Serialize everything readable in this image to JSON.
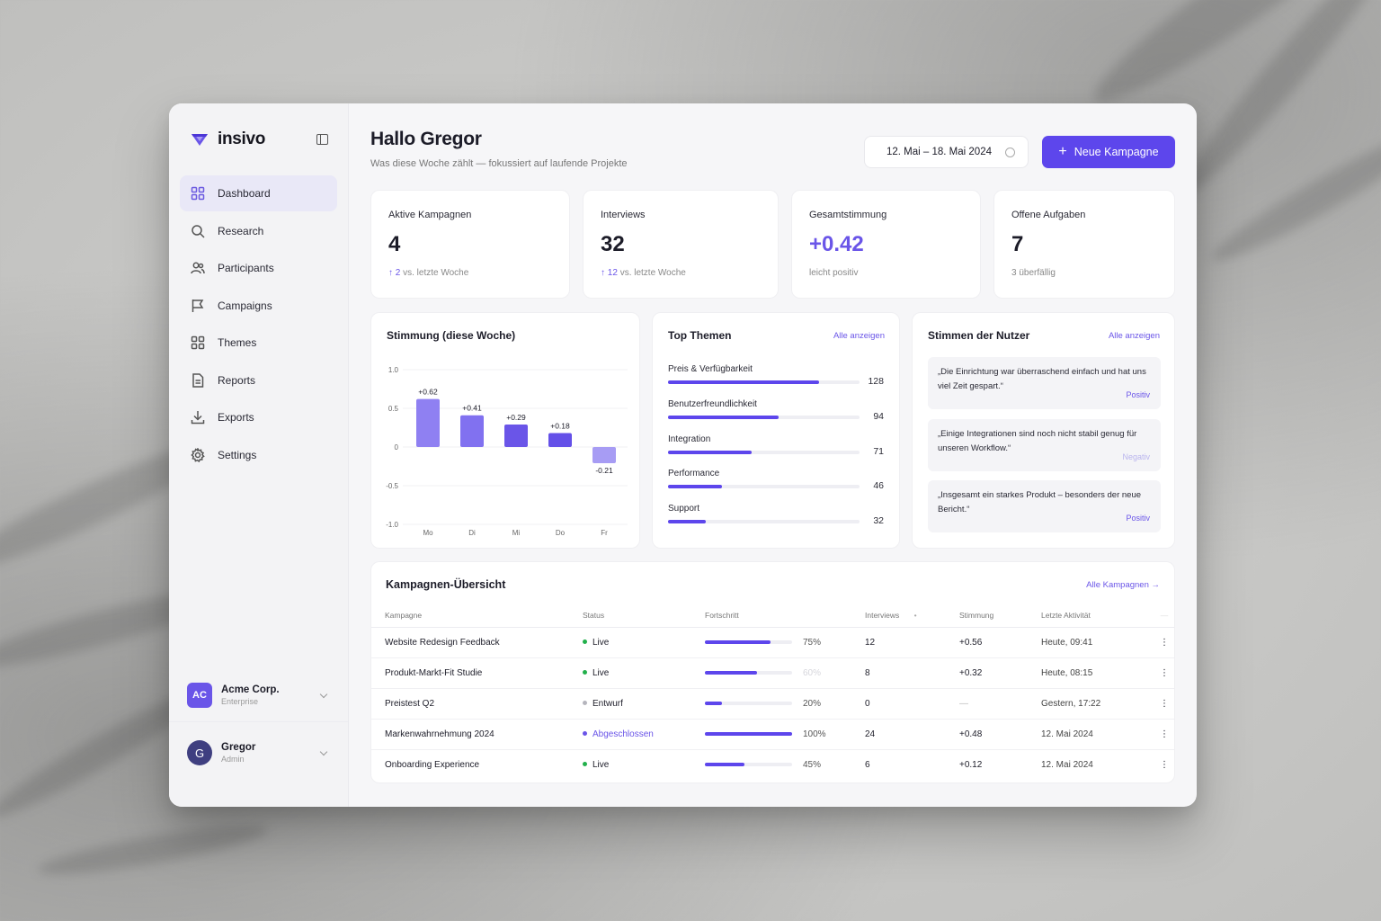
{
  "brand": {
    "name": "insivo"
  },
  "nav": [
    {
      "label": "Dashboard",
      "icon": "grid-icon",
      "active": true
    },
    {
      "label": "Research",
      "icon": "search-icon"
    },
    {
      "label": "Participants",
      "icon": "users-icon"
    },
    {
      "label": "Campaigns",
      "icon": "flag-icon"
    },
    {
      "label": "Themes",
      "icon": "themes-grid-icon"
    },
    {
      "label": "Reports",
      "icon": "document-icon"
    },
    {
      "label": "Exports",
      "icon": "download-icon"
    },
    {
      "label": "Settings",
      "icon": "gear-icon"
    }
  ],
  "org": {
    "initials": "AC",
    "name": "Acme Corp.",
    "plan": "Enterprise"
  },
  "user": {
    "initial": "G",
    "name": "Gregor",
    "role": "Admin"
  },
  "header": {
    "title": "Hallo Gregor",
    "subtitle": "Was diese Woche zählt — fokussiert auf laufende Projekte",
    "date_range": "12. Mai – 18. Mai 2024",
    "cta_label": "Neue Kampagne"
  },
  "kpis": [
    {
      "label": "Aktive Kampagnen",
      "value": "4",
      "delta": "2",
      "note": "vs. letzte Woche"
    },
    {
      "label": "Interviews",
      "value": "32",
      "delta": "12",
      "note": "vs. letzte Woche"
    },
    {
      "label": "Gesamtstimmung",
      "value": "+0.42",
      "note": "leicht positiv"
    },
    {
      "label": "Offene Aufgaben",
      "value": "7",
      "note": "3 überfällig"
    }
  ],
  "chart_card": {
    "title": "Stimmung (diese Woche)"
  },
  "chart_data": {
    "type": "bar",
    "title": "Stimmung (diese Woche)",
    "categories": [
      "Mo",
      "Di",
      "Mi",
      "Do",
      "Fr"
    ],
    "values": [
      0.62,
      0.41,
      0.29,
      0.18,
      -0.21
    ],
    "data_labels": [
      "+0.62",
      "+0.41",
      "+0.29",
      "+0.18",
      "-0.21"
    ],
    "yticks": [
      "1.0",
      "0.5",
      "0",
      "-0.5",
      "-1.0"
    ],
    "ylim": [
      -1.0,
      1.0
    ],
    "grid": true,
    "colors": [
      "#8f80f2",
      "#8171f0",
      "#6a55e8",
      "#6450e8",
      "#a79cf4"
    ]
  },
  "topics": {
    "title": "Top Themen",
    "link": "Alle anzeigen",
    "items": [
      {
        "label": "Preis & Verfügbarkeit",
        "count": "128",
        "value": 128
      },
      {
        "label": "Benutzerfreundlichkeit",
        "count": "94",
        "value": 94
      },
      {
        "label": "Integration",
        "count": "71",
        "value": 71
      },
      {
        "label": "Performance",
        "count": "46",
        "value": 46
      },
      {
        "label": "Support",
        "count": "32",
        "value": 32
      }
    ]
  },
  "voices": {
    "title": "Stimmen der Nutzer",
    "link": "Alle anzeigen",
    "items": [
      {
        "text": "„Die Einrichtung war überraschend einfach und hat uns viel Zeit gespart.“",
        "tag": "Positiv",
        "type": "pos"
      },
      {
        "text": "„Einige Integrationen sind noch nicht stabil genug für unseren Workflow.“",
        "tag": "Negativ",
        "type": "neg"
      },
      {
        "text": "„Insgesamt ein starkes Produkt – besonders der neue Bericht.“",
        "tag": "Positiv",
        "type": "pos"
      }
    ]
  },
  "campaigns": {
    "title": "Kampagnen-Übersicht",
    "link": "Alle Kampagnen →",
    "columns": [
      "Kampagne",
      "Status",
      "Fortschritt",
      "Interviews",
      "Stimmung",
      "Letzte Aktivität"
    ],
    "sort_indicator": "•",
    "more_header": "—",
    "rows": [
      {
        "name": "Website Redesign Feedback",
        "status": "Live",
        "status_color": "#22b04b",
        "progress": 75,
        "progress_label": "75%",
        "interviews": "12",
        "sentiment": "+0.56",
        "last": "Heute, 09:41"
      },
      {
        "name": "Produkt-Markt-Fit Studie",
        "status": "Live",
        "status_color": "#22b04b",
        "progress": 60,
        "progress_label": "60%",
        "interviews": "8",
        "sentiment": "+0.32",
        "last": "Heute, 08:15"
      },
      {
        "name": "Preistest Q2",
        "status": "Entwurf",
        "status_color": "#b5b5bd",
        "progress": 20,
        "progress_label": "20%",
        "interviews": "0",
        "sentiment": "—",
        "last": "Gestern, 17:22"
      },
      {
        "name": "Markenwahrnehmung 2024",
        "status": "Abgeschlossen",
        "status_color": "#6a55e8",
        "progress": 100,
        "progress_label": "100%",
        "interviews": "24",
        "sentiment": "+0.48",
        "last": "12. Mai 2024"
      },
      {
        "name": "Onboarding Experience",
        "status": "Live",
        "status_color": "#22b04b",
        "progress": 45,
        "progress_label": "45%",
        "interviews": "6",
        "sentiment": "+0.12",
        "last": "12. Mai 2024"
      }
    ]
  }
}
